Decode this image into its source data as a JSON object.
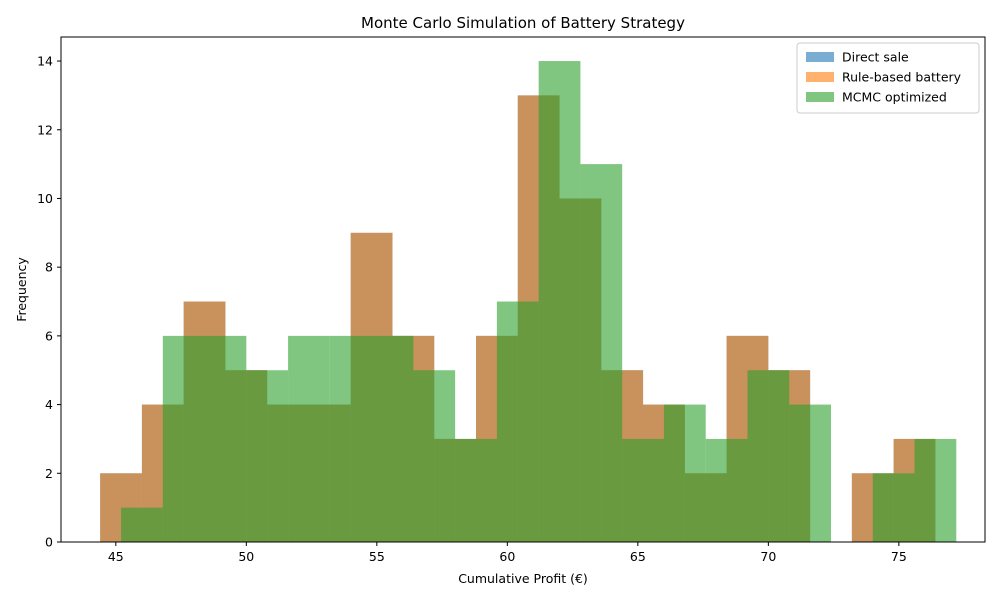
{
  "chart_data": {
    "type": "bar",
    "subtype": "overlapping-histogram",
    "title": "Monte Carlo Simulation of Battery Strategy",
    "xlabel": "Cumulative Profit (€)",
    "ylabel": "Frequency",
    "xlim": [
      42.9,
      78.3
    ],
    "ylim": [
      0,
      14.7
    ],
    "xticks": [
      45,
      50,
      55,
      60,
      65,
      70,
      75
    ],
    "yticks": [
      0,
      2,
      4,
      6,
      8,
      10,
      12,
      14
    ],
    "grid": false,
    "legend_position": "top-right",
    "series": [
      {
        "name": "Direct sale",
        "color": "#1f77b4",
        "alpha": 0.6,
        "bins": [
          44.4,
          46.0,
          47.6,
          49.2,
          50.8,
          52.4,
          54.0,
          55.6,
          57.2,
          58.8,
          60.4,
          62.0,
          63.6,
          65.2,
          66.8,
          68.4,
          70.0,
          71.6,
          73.2,
          74.8,
          76.4
        ],
        "counts": [
          2,
          4,
          7,
          5,
          4,
          4,
          9,
          6,
          3,
          6,
          13,
          10,
          5,
          4,
          2,
          6,
          5,
          0,
          2,
          3
        ]
      },
      {
        "name": "Rule-based battery",
        "color": "#ff7f0e",
        "alpha": 0.6,
        "bins": [
          44.4,
          46.0,
          47.6,
          49.2,
          50.8,
          52.4,
          54.0,
          55.6,
          57.2,
          58.8,
          60.4,
          62.0,
          63.6,
          65.2,
          66.8,
          68.4,
          70.0,
          71.6,
          73.2,
          74.8,
          76.4
        ],
        "counts": [
          2,
          4,
          7,
          5,
          4,
          4,
          9,
          6,
          3,
          6,
          13,
          10,
          5,
          4,
          2,
          6,
          5,
          0,
          2,
          3
        ]
      },
      {
        "name": "MCMC optimized",
        "color": "#2ca02c",
        "alpha": 0.6,
        "bins": [
          45.2,
          46.8,
          48.4,
          50.0,
          51.6,
          53.2,
          54.8,
          56.4,
          58.0,
          59.6,
          61.2,
          62.8,
          64.4,
          66.0,
          67.6,
          69.2,
          70.8,
          72.4,
          74.0,
          75.6,
          77.2
        ],
        "counts": [
          1,
          6,
          6,
          5,
          6,
          6,
          6,
          5,
          3,
          7,
          14,
          11,
          3,
          4,
          3,
          5,
          4,
          0,
          2,
          3
        ]
      }
    ]
  }
}
